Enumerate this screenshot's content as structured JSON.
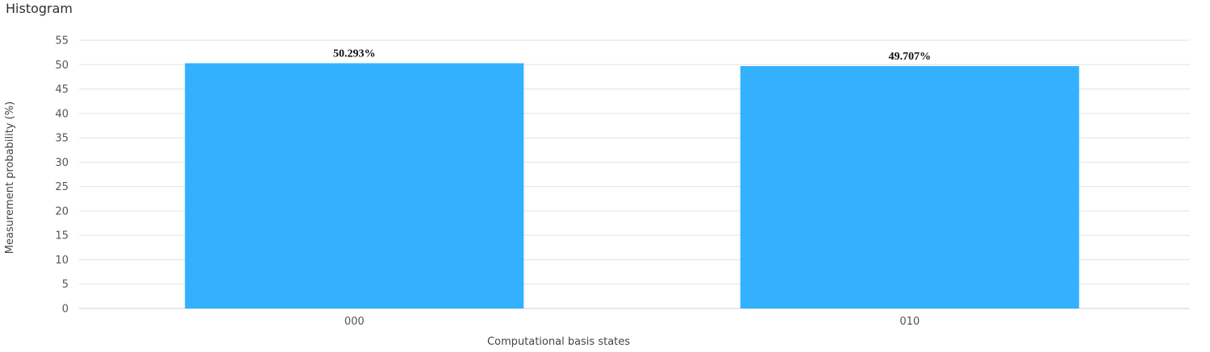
{
  "header": {
    "title": "Histogram"
  },
  "chart_data": {
    "type": "bar",
    "title": "",
    "xlabel": "Computational basis states",
    "ylabel": "Measurement probability (%)",
    "categories": [
      "000",
      "010"
    ],
    "values": [
      50.293,
      49.707
    ],
    "value_labels": [
      "50.293%",
      "49.707%"
    ],
    "ylim": [
      0,
      55
    ],
    "yticks": [
      0,
      5,
      10,
      15,
      20,
      25,
      30,
      35,
      40,
      45,
      50,
      55
    ],
    "grid": true,
    "bar_color": "#33b1ff"
  }
}
